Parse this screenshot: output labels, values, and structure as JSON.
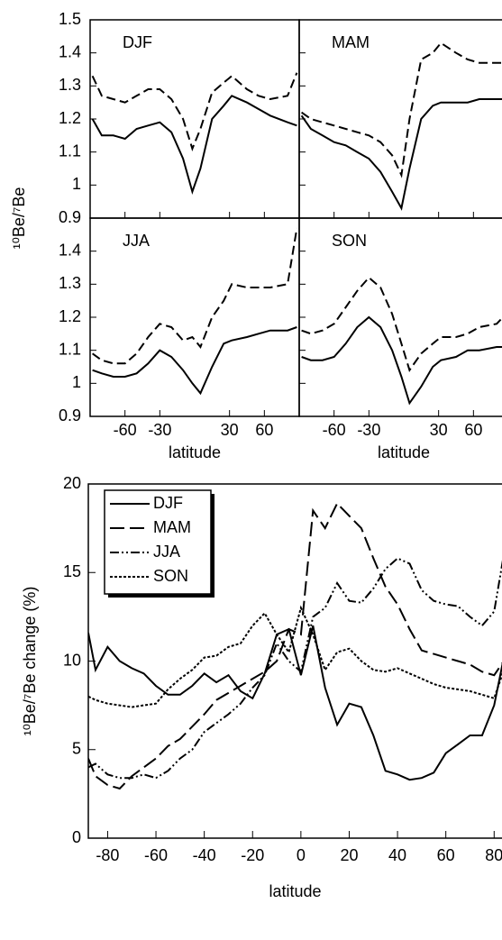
{
  "chart_data": [
    {
      "type": "line",
      "ylabel": "¹⁰Be/⁷Be",
      "xlabel": "latitude",
      "x": [
        -88,
        -80,
        -70,
        -60,
        -50,
        -40,
        -30,
        -20,
        -10,
        -2,
        5,
        15,
        25,
        32,
        45,
        55,
        65,
        80,
        88
      ],
      "xlim": [
        -90,
        90
      ],
      "xticks": [
        -60,
        -30,
        30,
        60
      ],
      "ylim": [
        0.9,
        1.5
      ],
      "yticks": [
        0.9,
        1,
        1.1,
        1.2,
        1.3,
        1.4,
        1.5
      ],
      "color": "#000000",
      "panels": [
        {
          "label": "DJF",
          "series": [
            {
              "dash": "solid",
              "values": [
                1.2,
                1.15,
                1.15,
                1.14,
                1.17,
                1.18,
                1.19,
                1.16,
                1.08,
                0.98,
                1.05,
                1.2,
                1.24,
                1.27,
                1.25,
                1.23,
                1.21,
                1.19,
                1.18
              ]
            },
            {
              "dash": "dashed",
              "values": [
                1.33,
                1.27,
                1.26,
                1.25,
                1.27,
                1.29,
                1.29,
                1.26,
                1.2,
                1.11,
                1.17,
                1.28,
                1.31,
                1.33,
                1.29,
                1.27,
                1.26,
                1.27,
                1.34
              ]
            }
          ]
        },
        {
          "label": "MAM",
          "series": [
            {
              "dash": "solid",
              "values": [
                1.21,
                1.17,
                1.15,
                1.13,
                1.12,
                1.1,
                1.08,
                1.04,
                0.98,
                0.93,
                1.05,
                1.2,
                1.24,
                1.25,
                1.25,
                1.25,
                1.26,
                1.26,
                1.26
              ]
            },
            {
              "dash": "dashed",
              "values": [
                1.22,
                1.2,
                1.19,
                1.18,
                1.17,
                1.16,
                1.15,
                1.13,
                1.09,
                1.03,
                1.2,
                1.38,
                1.4,
                1.43,
                1.4,
                1.38,
                1.37,
                1.37,
                1.37
              ]
            }
          ]
        },
        {
          "label": "JJA",
          "series": [
            {
              "dash": "solid",
              "values": [
                1.04,
                1.03,
                1.02,
                1.02,
                1.03,
                1.06,
                1.1,
                1.08,
                1.04,
                1.0,
                0.97,
                1.05,
                1.12,
                1.13,
                1.14,
                1.15,
                1.16,
                1.16,
                1.17
              ]
            },
            {
              "dash": "dashed",
              "values": [
                1.09,
                1.07,
                1.06,
                1.06,
                1.09,
                1.14,
                1.18,
                1.17,
                1.13,
                1.14,
                1.11,
                1.2,
                1.25,
                1.3,
                1.29,
                1.29,
                1.29,
                1.3,
                1.47
              ]
            }
          ]
        },
        {
          "label": "SON",
          "series": [
            {
              "dash": "solid",
              "values": [
                1.08,
                1.07,
                1.07,
                1.08,
                1.12,
                1.17,
                1.2,
                1.17,
                1.1,
                1.02,
                0.94,
                0.99,
                1.05,
                1.07,
                1.08,
                1.1,
                1.1,
                1.11,
                1.11
              ]
            },
            {
              "dash": "dashed",
              "values": [
                1.16,
                1.15,
                1.16,
                1.18,
                1.23,
                1.28,
                1.32,
                1.29,
                1.21,
                1.12,
                1.04,
                1.09,
                1.12,
                1.14,
                1.14,
                1.15,
                1.17,
                1.18,
                1.21
              ]
            }
          ]
        }
      ]
    },
    {
      "type": "line",
      "ylabel": "¹⁰Be/⁷Be change (%)",
      "xlabel": "latitude",
      "x": [
        -88,
        -85,
        -80,
        -75,
        -70,
        -65,
        -60,
        -55,
        -50,
        -45,
        -40,
        -35,
        -30,
        -25,
        -20,
        -15,
        -10,
        -5,
        0,
        5,
        10,
        15,
        20,
        25,
        30,
        35,
        40,
        45,
        50,
        55,
        60,
        65,
        70,
        75,
        80,
        84
      ],
      "xlim": [
        -88,
        84
      ],
      "xticks": [
        -80,
        -60,
        -40,
        -20,
        0,
        20,
        40,
        60,
        80
      ],
      "ylim": [
        0,
        20
      ],
      "yticks": [
        0,
        5,
        10,
        15,
        20
      ],
      "legend": "upper left",
      "series": [
        {
          "name": "DJF",
          "color": "#000000",
          "dash": "solid",
          "values": [
            11.6,
            9.5,
            10.8,
            10,
            9.6,
            9.3,
            8.6,
            8.1,
            8.1,
            8.6,
            9.3,
            8.8,
            9.2,
            8.3,
            7.9,
            9.3,
            11.5,
            11.8,
            9.2,
            12,
            8.5,
            6.4,
            7.6,
            7.4,
            5.8,
            3.8,
            3.6,
            3.3,
            3.4,
            3.7,
            4.8,
            5.3,
            5.8,
            5.8,
            7.5,
            10.2
          ]
        },
        {
          "name": "MAM",
          "color": "#000000",
          "dash": "long-dash",
          "values": [
            4.5,
            3.5,
            3,
            2.8,
            3.5,
            4,
            4.5,
            5.2,
            5.6,
            6.3,
            7,
            7.8,
            8.2,
            8.6,
            9,
            9.4,
            10,
            11.8,
            11.5,
            18.5,
            17.5,
            18.9,
            18.2,
            17.5,
            15.8,
            14.2,
            13.2,
            11.8,
            10.6,
            10.4,
            10.2,
            10,
            9.8,
            9.4,
            9.2,
            10
          ]
        },
        {
          "name": "JJA",
          "color": "#000000",
          "dash": "dash-dot-dot",
          "values": [
            4,
            4.2,
            3.6,
            3.4,
            3.4,
            3.6,
            3.4,
            3.8,
            4.5,
            5,
            6,
            6.5,
            7,
            7.6,
            8.5,
            9.2,
            11,
            10,
            9.4,
            12.5,
            13,
            14.4,
            13.4,
            13.3,
            14.1,
            15.2,
            15.8,
            15.5,
            14,
            13.4,
            13.2,
            13.1,
            12.5,
            12,
            12.8,
            16
          ]
        },
        {
          "name": "SON",
          "color": "#000000",
          "dash": "dotted",
          "values": [
            8,
            7.8,
            7.6,
            7.5,
            7.4,
            7.5,
            7.6,
            8.4,
            9,
            9.5,
            10.2,
            10.3,
            10.8,
            11,
            12,
            12.7,
            11.5,
            10.5,
            13,
            11.5,
            9.5,
            10.5,
            10.7,
            10,
            9.5,
            9.4,
            9.6,
            9.3,
            9,
            8.7,
            8.5,
            8.4,
            8.3,
            8.1,
            7.9,
            9.5
          ]
        }
      ]
    }
  ]
}
